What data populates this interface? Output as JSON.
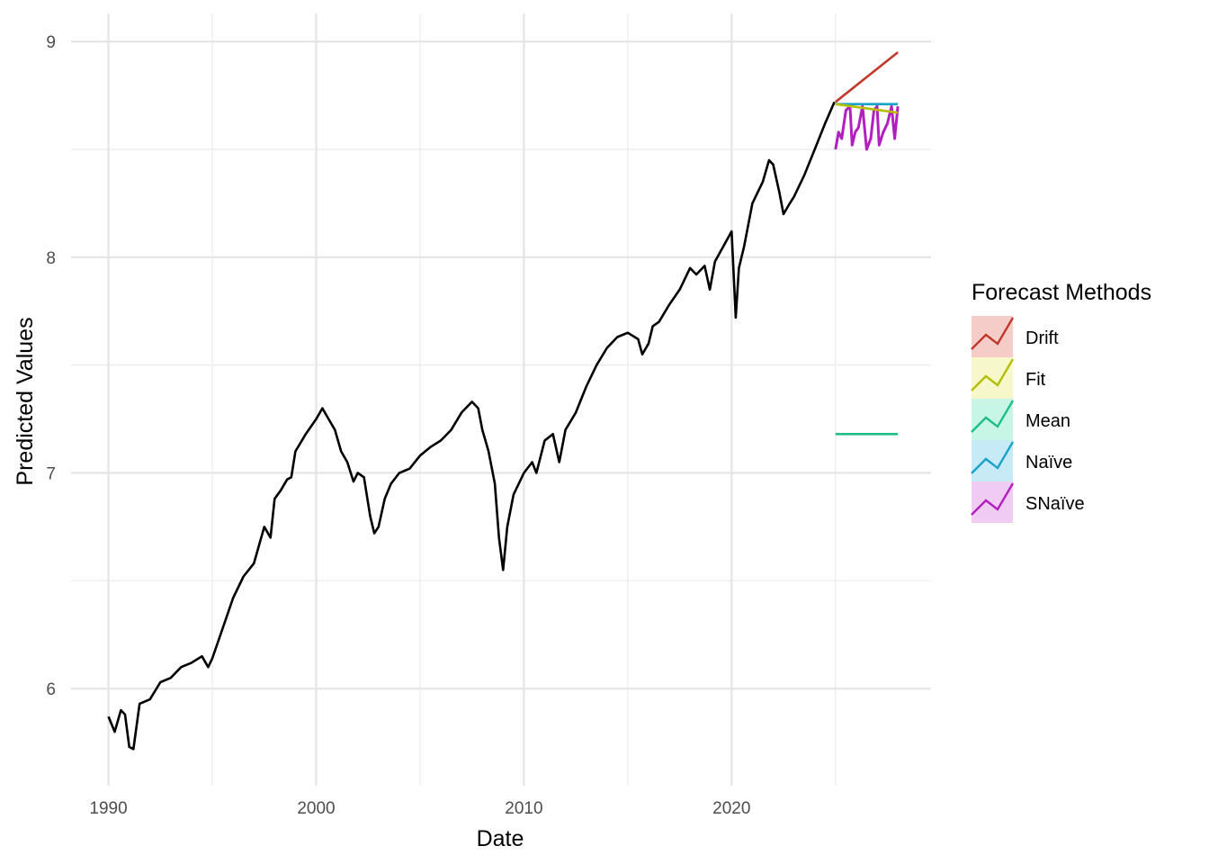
{
  "chart_data": {
    "type": "line",
    "title": "",
    "xlabel": "Date",
    "ylabel": "Predicted Values",
    "xlim": [
      1988.2,
      2029.6
    ],
    "ylim": [
      5.55,
      9.13
    ],
    "x_ticks": [
      1990,
      2000,
      2010,
      2020
    ],
    "y_ticks": [
      6,
      7,
      8,
      9
    ],
    "grid": true,
    "legend": {
      "title": "Forecast Methods",
      "position": "right"
    },
    "history": {
      "x": [
        1990.0,
        1990.3,
        1990.6,
        1990.8,
        1991.0,
        1991.2,
        1991.5,
        1992.0,
        1992.5,
        1993.0,
        1993.5,
        1994.0,
        1994.5,
        1994.8,
        1995.0,
        1995.5,
        1996.0,
        1996.5,
        1997.0,
        1997.5,
        1997.8,
        1998.0,
        1998.3,
        1998.6,
        1998.8,
        1999.0,
        1999.5,
        2000.0,
        2000.3,
        2000.6,
        2000.9,
        2001.2,
        2001.5,
        2001.8,
        2002.0,
        2002.3,
        2002.6,
        2002.8,
        2003.0,
        2003.3,
        2003.6,
        2004.0,
        2004.5,
        2005.0,
        2005.5,
        2006.0,
        2006.5,
        2007.0,
        2007.5,
        2007.8,
        2008.0,
        2008.3,
        2008.6,
        2008.8,
        2009.0,
        2009.2,
        2009.5,
        2010.0,
        2010.4,
        2010.6,
        2011.0,
        2011.4,
        2011.7,
        2012.0,
        2012.5,
        2013.0,
        2013.5,
        2014.0,
        2014.5,
        2015.0,
        2015.5,
        2015.7,
        2016.0,
        2016.2,
        2016.5,
        2017.0,
        2017.5,
        2018.0,
        2018.3,
        2018.7,
        2018.95,
        2019.2,
        2019.6,
        2020.0,
        2020.2,
        2020.35,
        2020.6,
        2021.0,
        2021.5,
        2021.8,
        2022.0,
        2022.3,
        2022.5,
        2022.8,
        2023.0,
        2023.5,
        2024.0,
        2024.5,
        2024.95
      ],
      "values": [
        5.87,
        5.8,
        5.9,
        5.88,
        5.73,
        5.72,
        5.93,
        5.95,
        6.03,
        6.05,
        6.1,
        6.12,
        6.15,
        6.1,
        6.14,
        6.28,
        6.42,
        6.52,
        6.58,
        6.75,
        6.7,
        6.88,
        6.92,
        6.97,
        6.98,
        7.1,
        7.18,
        7.25,
        7.3,
        7.25,
        7.2,
        7.1,
        7.05,
        6.96,
        7.0,
        6.98,
        6.8,
        6.72,
        6.75,
        6.88,
        6.95,
        7.0,
        7.02,
        7.08,
        7.12,
        7.15,
        7.2,
        7.28,
        7.33,
        7.3,
        7.2,
        7.1,
        6.95,
        6.7,
        6.55,
        6.75,
        6.9,
        7.0,
        7.05,
        7.0,
        7.15,
        7.18,
        7.05,
        7.2,
        7.28,
        7.4,
        7.5,
        7.58,
        7.63,
        7.65,
        7.62,
        7.55,
        7.6,
        7.68,
        7.7,
        7.78,
        7.85,
        7.95,
        7.92,
        7.96,
        7.85,
        7.98,
        8.05,
        8.12,
        7.72,
        7.95,
        8.05,
        8.25,
        8.35,
        8.45,
        8.43,
        8.3,
        8.2,
        8.25,
        8.28,
        8.38,
        8.5,
        8.62,
        8.72
      ]
    },
    "series": [
      {
        "name": "Drift",
        "color": "#C0392B",
        "x": [
          2025.0,
          2028.0
        ],
        "values": [
          8.72,
          8.95
        ]
      },
      {
        "name": "Fit",
        "color": "#B5BD00",
        "x": [
          2025.0,
          2028.0
        ],
        "values": [
          8.71,
          8.67
        ]
      },
      {
        "name": "Mean",
        "color": "#1FBF87",
        "x": [
          2025.0,
          2028.0
        ],
        "values": [
          7.18,
          7.18
        ]
      },
      {
        "name": "Naïve",
        "color": "#1AA3C9",
        "x": [
          2025.0,
          2028.0
        ],
        "values": [
          8.71,
          8.71
        ]
      },
      {
        "name": "SNaïve",
        "color": "#B21FBF",
        "x": [
          2025.0,
          2025.15,
          2025.3,
          2025.5,
          2025.7,
          2025.8,
          2025.95,
          2026.1,
          2026.3,
          2026.5,
          2026.7,
          2026.85,
          2027.0,
          2027.1,
          2027.3,
          2027.5,
          2027.7,
          2027.85,
          2028.0
        ],
        "values": [
          8.5,
          8.58,
          8.55,
          8.68,
          8.7,
          8.52,
          8.58,
          8.6,
          8.7,
          8.5,
          8.55,
          8.68,
          8.7,
          8.52,
          8.58,
          8.62,
          8.7,
          8.55,
          8.7
        ]
      }
    ]
  }
}
